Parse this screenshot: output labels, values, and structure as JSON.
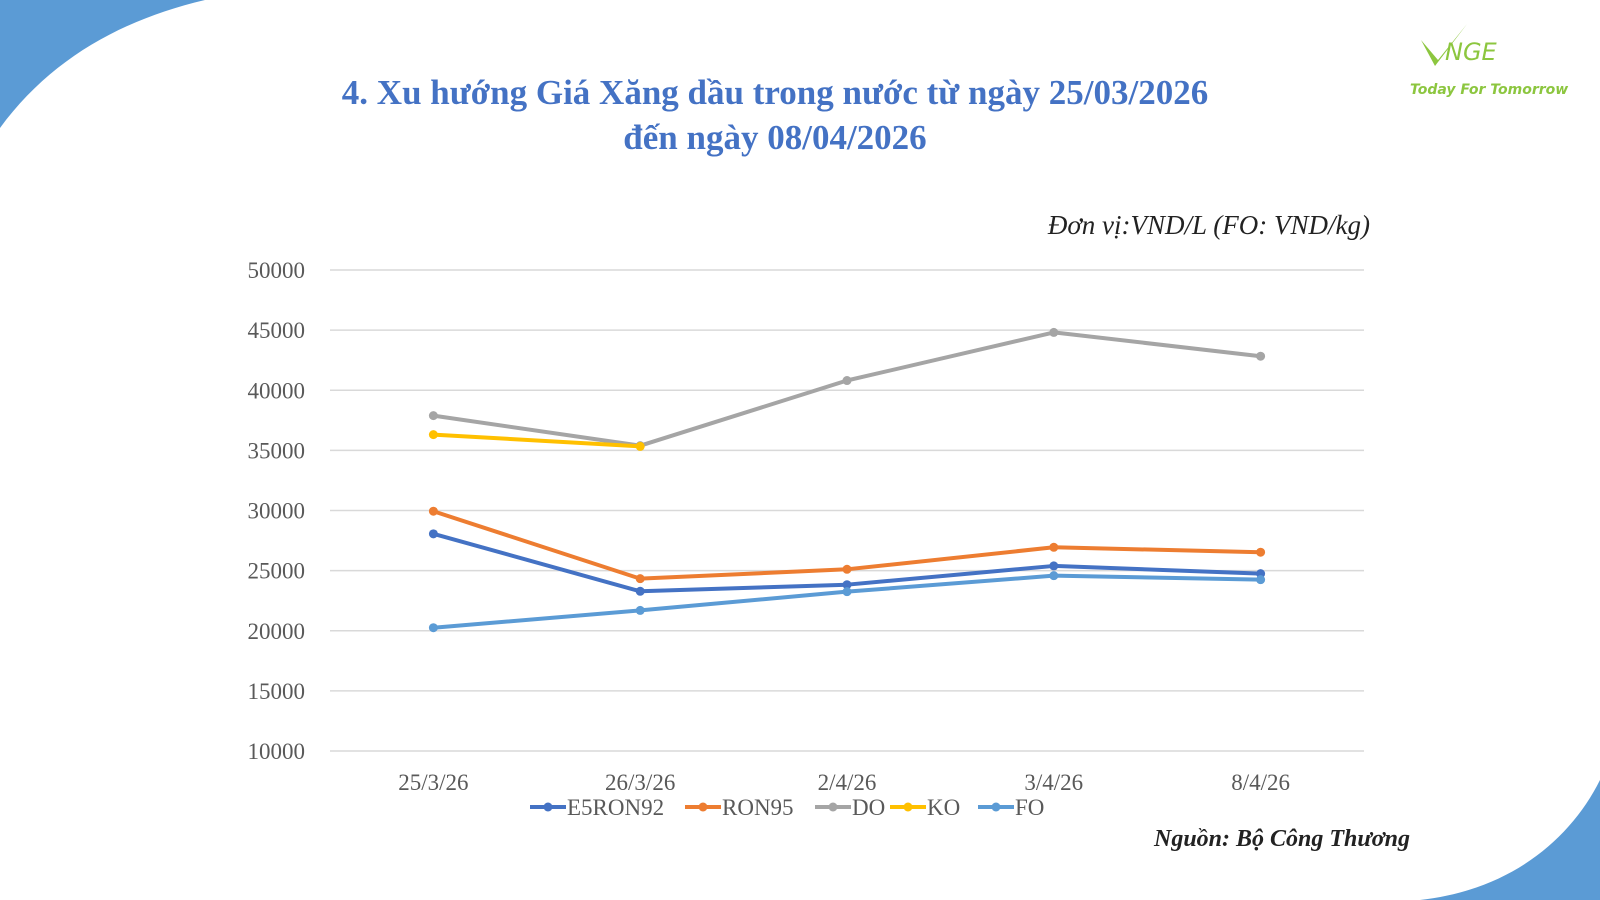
{
  "logo": {
    "name": "NGE",
    "tagline": "Today For Tomorrow"
  },
  "unit_note": "Đơn vị:VND/L (FO: VND/kg)",
  "source_note": "Nguồn: Bộ Công Thương",
  "chart_data": {
    "type": "line",
    "title": "4. Xu hướng Giá Xăng dầu trong nước từ ngày 25/03/2026",
    "title_line2": "đến ngày 08/04/2026",
    "xlabel": "",
    "ylabel": "",
    "categories": [
      "25/3/26",
      "26/3/26",
      "2/4/26",
      "3/4/26",
      "8/4/26"
    ],
    "ylim": [
      10000,
      50000
    ],
    "yticks": [
      10000,
      15000,
      20000,
      25000,
      30000,
      35000,
      40000,
      45000,
      50000
    ],
    "grid": true,
    "legend_position": "bottom",
    "series": [
      {
        "name": "E5RON92",
        "color": "#4472c4",
        "values": [
          28060,
          23280,
          23830,
          25390,
          24750
        ]
      },
      {
        "name": "RON95",
        "color": "#ed7d31",
        "values": [
          29940,
          24330,
          25110,
          26940,
          26530
        ]
      },
      {
        "name": "DO",
        "color": "#a5a5a5",
        "values": [
          37890,
          35390,
          40810,
          44810,
          42830
        ]
      },
      {
        "name": "KO",
        "color": "#ffc000",
        "values": [
          36310,
          35330,
          null,
          null,
          null
        ]
      },
      {
        "name": "FO",
        "color": "#5b9bd5",
        "values": [
          20250,
          21690,
          23250,
          24580,
          24250
        ]
      }
    ]
  }
}
